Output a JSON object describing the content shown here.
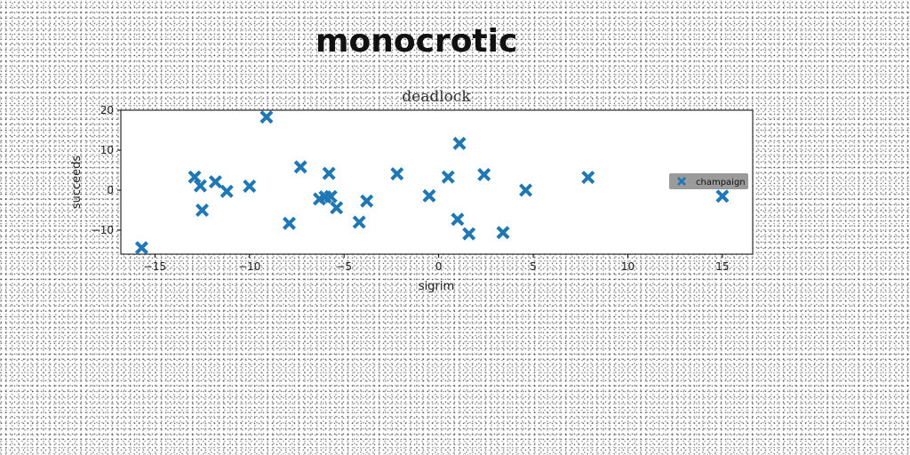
{
  "page": {
    "title": "monocrotic"
  },
  "chart_data": {
    "type": "scatter",
    "title": "deadlock",
    "xlabel": "sigrim",
    "ylabel": "succeeds",
    "xlim": [
      -16.8,
      16.6
    ],
    "ylim": [
      -16,
      20
    ],
    "xticks": [
      -15,
      -10,
      -5,
      0,
      5,
      10,
      15
    ],
    "yticks": [
      -10,
      0,
      10,
      20
    ],
    "legend_position": "right",
    "series": [
      {
        "name": "champaign",
        "color": "#1f77b4",
        "marker": "x-filled",
        "points": [
          [
            -15.7,
            -14.4
          ],
          [
            -12.9,
            3.3
          ],
          [
            -12.6,
            1.1
          ],
          [
            -12.5,
            -5.0
          ],
          [
            -11.8,
            2.1
          ],
          [
            -11.2,
            -0.3
          ],
          [
            -10.0,
            1.0
          ],
          [
            -9.1,
            18.3
          ],
          [
            -7.9,
            -8.3
          ],
          [
            -7.3,
            5.8
          ],
          [
            -6.3,
            -2.2
          ],
          [
            -6.0,
            -1.7
          ],
          [
            -5.8,
            4.2
          ],
          [
            -5.7,
            -1.6
          ],
          [
            -5.4,
            -4.4
          ],
          [
            -4.2,
            -8.0
          ],
          [
            -3.8,
            -2.7
          ],
          [
            -2.2,
            4.1
          ],
          [
            -0.5,
            -1.4
          ],
          [
            0.5,
            3.3
          ],
          [
            1.0,
            -7.3
          ],
          [
            1.1,
            11.7
          ],
          [
            1.6,
            -10.9
          ],
          [
            2.4,
            3.9
          ],
          [
            3.4,
            -10.6
          ],
          [
            4.6,
            0.0
          ],
          [
            7.9,
            3.2
          ],
          [
            15.0,
            -1.5
          ]
        ]
      }
    ]
  }
}
